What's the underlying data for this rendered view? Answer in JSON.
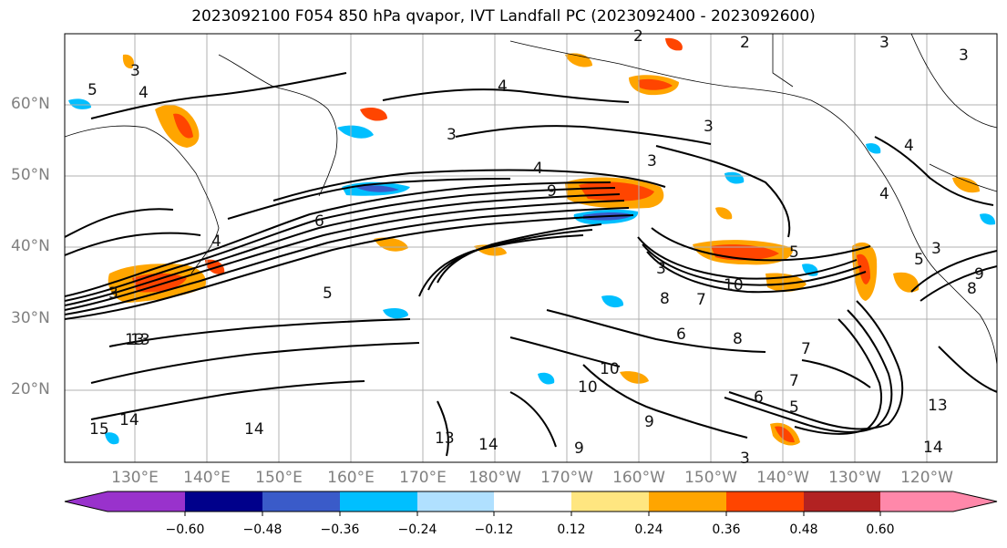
{
  "title": "2023092100 F054 850 hPa qvapor, IVT Landfall PC (2023092400 - 2023092600)",
  "lat_labels": [
    "60°N",
    "50°N",
    "40°N",
    "30°N",
    "20°N"
  ],
  "lon_labels": [
    "130°E",
    "140°E",
    "150°E",
    "160°E",
    "170°E",
    "180°W",
    "170°W",
    "160°W",
    "150°W",
    "140°W",
    "130°W",
    "120°W"
  ],
  "colorbar": {
    "colors": [
      "#9932cc",
      "#00008b",
      "#3a5bc9",
      "#00bfff",
      "#b0e0ff",
      "#ffffff",
      "#ffe680",
      "#ffa500",
      "#ff4500",
      "#b22222",
      "#ff88aa"
    ],
    "tick_labels": [
      "−0.60",
      "−0.48",
      "−0.36",
      "−0.24",
      "−0.12",
      "0.12",
      "0.24",
      "0.36",
      "0.48",
      "0.60"
    ]
  },
  "contour_labels": [
    "2",
    "3",
    "3",
    "2",
    "4",
    "5",
    "3",
    "4",
    "3",
    "4",
    "3",
    "3",
    "9",
    "4",
    "3",
    "5",
    "6",
    "7",
    "8",
    "8",
    "10",
    "10",
    "10",
    "13",
    "14",
    "14",
    "13",
    "9",
    "15",
    "14",
    "6",
    "7",
    "5",
    "13",
    "14",
    "9",
    "3",
    "4",
    "5",
    "3",
    "5",
    "6",
    "8",
    "9",
    "7",
    "3",
    "4",
    "13"
  ]
}
